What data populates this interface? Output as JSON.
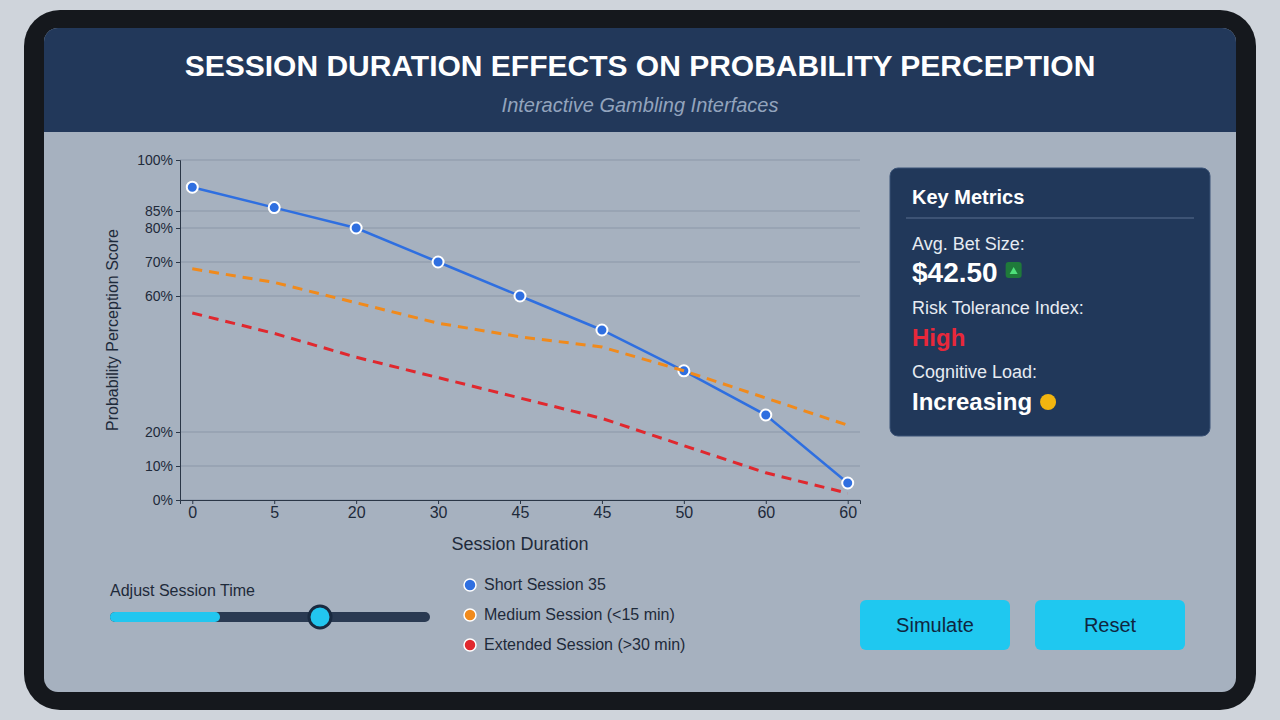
{
  "chart_data": {
    "type": "line",
    "title": "SESSION DURATION EFFECTS ON PROBABILITY PERCEPTION",
    "subtitle": "Interactive Gambling Interfaces",
    "x_label": "Session Duration",
    "y_label": "Probability Perception Score",
    "categories": [
      "0",
      "5",
      "20",
      "30",
      "45",
      "45",
      "50",
      "60",
      "60"
    ],
    "series": [
      {
        "name": "Short Session 35",
        "color": "#2f6fe0",
        "line_style": "solid",
        "marker": "circle",
        "values": [
          92,
          86,
          80,
          70,
          60,
          50,
          38,
          25,
          5
        ]
      },
      {
        "name": "Medium Session (<15 min)",
        "color": "#f08a1c",
        "line_style": "dashed",
        "marker": "none",
        "values": [
          68,
          64,
          58,
          52,
          48,
          45,
          38,
          30,
          22
        ]
      },
      {
        "name": "Extended Session (>30 min)",
        "color": "#e0282e",
        "line_style": "dashed",
        "marker": "none",
        "values": [
          55,
          49,
          42,
          36,
          30,
          24,
          16,
          8,
          2
        ]
      }
    ],
    "ylim": [
      0,
      100
    ],
    "yticks": [
      {
        "value": 100,
        "label": "100%"
      },
      {
        "value": 85,
        "label": "85%"
      },
      {
        "value": 80,
        "label": "80%"
      },
      {
        "value": 70,
        "label": "70%"
      },
      {
        "value": 60,
        "label": "60%"
      },
      {
        "value": 20,
        "label": "20%"
      },
      {
        "value": 10,
        "label": "10%"
      },
      {
        "value": 0,
        "label": "0%"
      }
    ],
    "grid": true,
    "legend": "bottom"
  },
  "key_metrics": {
    "title": "Key Metrics",
    "items": [
      {
        "label": "Avg. Bet Size:",
        "value": "$42.50"
      },
      {
        "label": "Risk Tolerance Index:",
        "value": "High"
      },
      {
        "label": "Cognitive Load:",
        "value": "Increasing"
      }
    ]
  },
  "controls": {
    "slider_label": "Adjust Session Time",
    "buttons": [
      "Simulate",
      "Reset"
    ]
  }
}
